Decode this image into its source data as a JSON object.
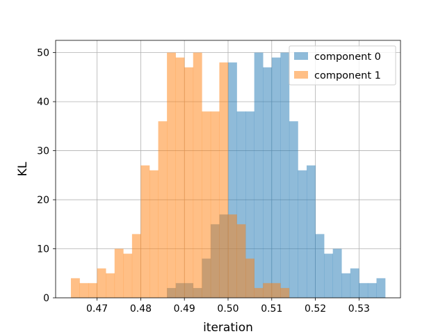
{
  "chart_data": {
    "type": "bar",
    "subtype": "overlapping-histogram",
    "title": "",
    "xlabel": "iteration",
    "ylabel": "KL",
    "xlim": [
      0.4605,
      0.5395
    ],
    "ylim": [
      0,
      52.5
    ],
    "grid": true,
    "legend_position": "top-right",
    "bin_width": 0.002,
    "xticks": [
      0.47,
      0.48,
      0.49,
      0.5,
      0.51,
      0.52,
      0.53
    ],
    "xtick_labels": [
      "0.47",
      "0.48",
      "0.49",
      "0.50",
      "0.51",
      "0.52",
      "0.53"
    ],
    "yticks": [
      0,
      10,
      20,
      30,
      40,
      50
    ],
    "ytick_labels": [
      "0",
      "10",
      "20",
      "30",
      "40",
      "50"
    ],
    "series": [
      {
        "name": "component 0",
        "color": "#1f77b4",
        "alpha": 0.5,
        "bin_starts": [
          0.486,
          0.488,
          0.49,
          0.492,
          0.494,
          0.496,
          0.498,
          0.5,
          0.502,
          0.504,
          0.506,
          0.508,
          0.51,
          0.512,
          0.514,
          0.516,
          0.518,
          0.52,
          0.522,
          0.524,
          0.526,
          0.528,
          0.53,
          0.532,
          0.534
        ],
        "values": [
          2,
          3,
          3,
          2,
          8,
          15,
          17,
          48,
          38,
          38,
          50,
          47,
          49,
          50,
          36,
          26,
          27,
          13,
          9,
          10,
          5,
          6,
          3,
          3,
          4
        ]
      },
      {
        "name": "component 1",
        "color": "#ff7f0e",
        "alpha": 0.5,
        "bin_starts": [
          0.464,
          0.466,
          0.468,
          0.47,
          0.472,
          0.474,
          0.476,
          0.478,
          0.48,
          0.482,
          0.484,
          0.486,
          0.488,
          0.49,
          0.492,
          0.494,
          0.496,
          0.498,
          0.5,
          0.502,
          0.504,
          0.506,
          0.508,
          0.51,
          0.512
        ],
        "values": [
          4,
          3,
          3,
          6,
          5,
          10,
          9,
          13,
          27,
          26,
          36,
          50,
          49,
          47,
          50,
          38,
          38,
          48,
          17,
          15,
          8,
          2,
          3,
          3,
          2
        ]
      }
    ]
  }
}
